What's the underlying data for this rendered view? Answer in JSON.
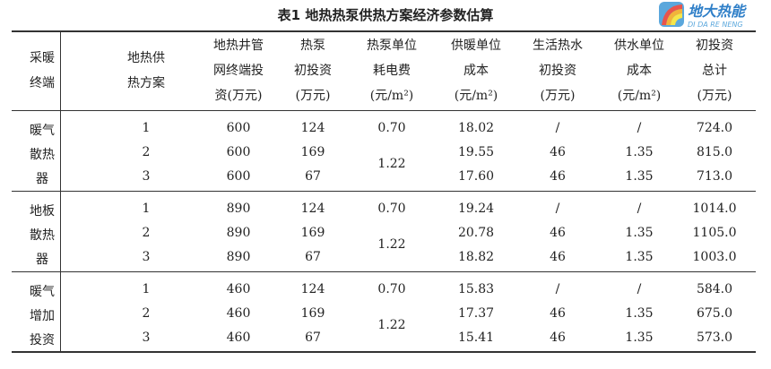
{
  "title": "表1  地热热泵供热方案经济参数估算",
  "headers": [
    [
      "采暖",
      "终端"
    ],
    [
      "地热供",
      "热方案"
    ],
    [
      "地热井管",
      "网终端投",
      "资(万元)"
    ],
    [
      "热泵",
      "初投资",
      "(万元)"
    ],
    [
      "热泵单位",
      "耗电费",
      "(元/m²)"
    ],
    [
      "供暖单位",
      "成本",
      "(元/m²)"
    ],
    [
      "生活热水",
      "初投资",
      "(万元)"
    ],
    [
      "供水单位",
      "成本",
      "(元/m²)"
    ],
    [
      "初投资",
      "总计",
      "(万元)"
    ]
  ],
  "groups": [
    {
      "terminal": [
        "暖气",
        "散热",
        "器"
      ],
      "electricity": [
        "0.70",
        "1.22"
      ],
      "rows": [
        [
          "1",
          "600",
          "124",
          "18.02",
          "/",
          "/",
          "724.0"
        ],
        [
          "2",
          "600",
          "169",
          "19.55",
          "46",
          "1.35",
          "815.0"
        ],
        [
          "3",
          "600",
          "67",
          "17.60",
          "46",
          "1.35",
          "713.0"
        ]
      ]
    },
    {
      "terminal": [
        "地板",
        "散热",
        "器"
      ],
      "electricity": [
        "0.70",
        "1.22"
      ],
      "rows": [
        [
          "1",
          "890",
          "124",
          "19.24",
          "/",
          "/",
          "1014.0"
        ],
        [
          "2",
          "890",
          "169",
          "20.78",
          "46",
          "1.35",
          "1105.0"
        ],
        [
          "3",
          "890",
          "67",
          "18.82",
          "46",
          "1.35",
          "1003.0"
        ]
      ]
    },
    {
      "terminal": [
        "暖气",
        "增加",
        "投资"
      ],
      "electricity": [
        "0.70",
        "1.22"
      ],
      "rows": [
        [
          "1",
          "460",
          "124",
          "15.83",
          "/",
          "/",
          "584.0"
        ],
        [
          "2",
          "460",
          "169",
          "17.37",
          "46",
          "1.35",
          "675.0"
        ],
        [
          "3",
          "460",
          "67",
          "15.41",
          "46",
          "1.35",
          "573.0"
        ]
      ]
    }
  ],
  "watermark": {
    "text": "地大热能",
    "sub": "DI DA RE NENG"
  }
}
